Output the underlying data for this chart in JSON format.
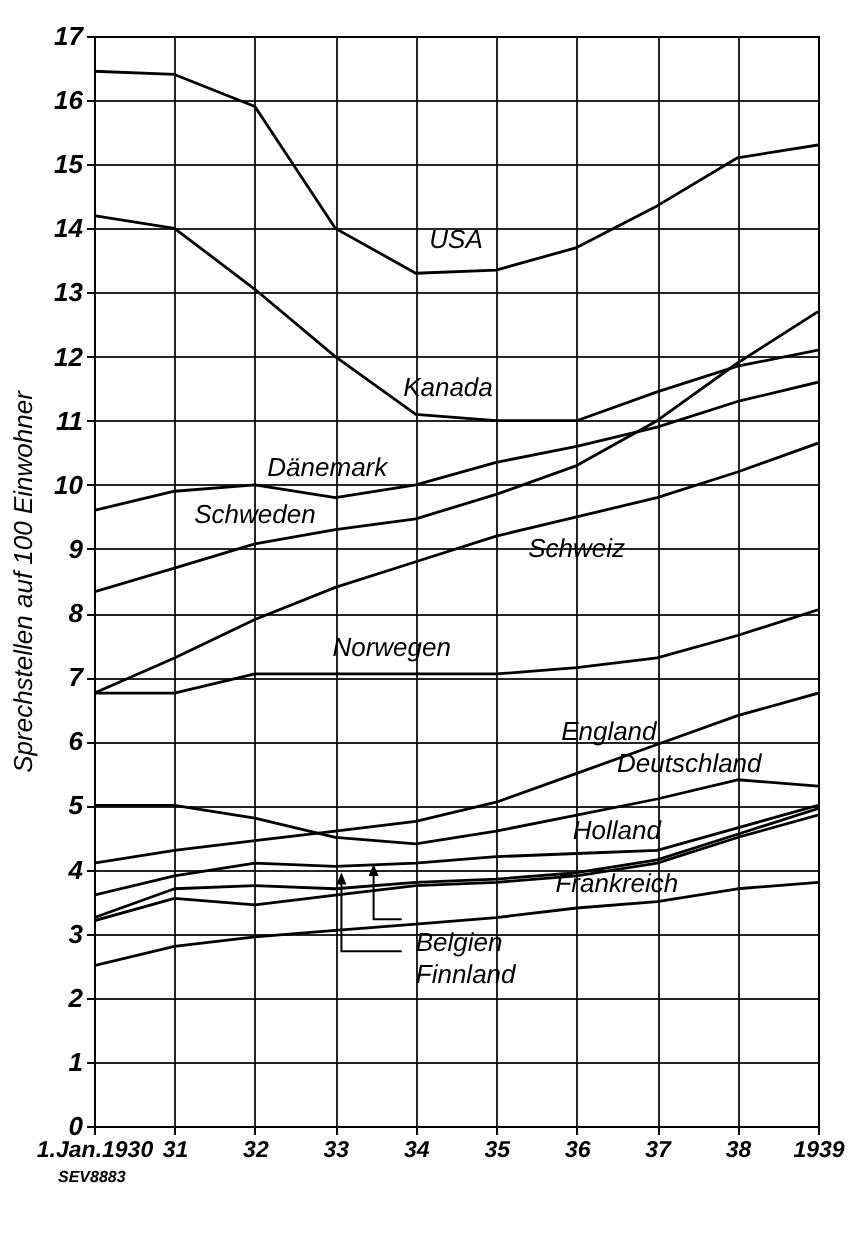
{
  "chart_data": {
    "type": "line",
    "ylabel": "Sprechstellen auf 100 Einwohner",
    "categories": [
      "1.Jan.1930",
      "31",
      "32",
      "33",
      "34",
      "35",
      "36",
      "37",
      "38",
      "1939"
    ],
    "series": [
      {
        "name": "USA",
        "color": "#000000",
        "values": [
          16.45,
          16.4,
          15.9,
          14.0,
          13.3,
          13.35,
          13.7,
          14.35,
          15.1,
          15.3
        ]
      },
      {
        "name": "Kanada",
        "color": "#000000",
        "values": [
          14.2,
          14.0,
          13.05,
          12.0,
          11.1,
          11.0,
          11.0,
          11.45,
          11.85,
          12.1
        ]
      },
      {
        "name": "Dänemark",
        "color": "#000000",
        "values": [
          9.6,
          9.9,
          10.0,
          9.8,
          10.0,
          10.35,
          10.6,
          10.9,
          11.3,
          11.6
        ]
      },
      {
        "name": "Schweden",
        "color": "#000000",
        "values": [
          8.33,
          8.7,
          9.08,
          9.3,
          9.47,
          9.85,
          10.3,
          11.0,
          11.9,
          12.7
        ]
      },
      {
        "name": "Schweiz",
        "color": "#000000",
        "values": [
          6.75,
          7.3,
          7.9,
          8.4,
          8.8,
          9.2,
          9.5,
          9.8,
          10.2,
          10.65
        ]
      },
      {
        "name": "Norwegen",
        "color": "#000000",
        "values": [
          6.75,
          6.75,
          7.05,
          7.05,
          7.05,
          7.05,
          7.15,
          7.3,
          7.65,
          8.05
        ]
      },
      {
        "name": "England",
        "color": "#000000",
        "values": [
          4.1,
          4.3,
          4.45,
          4.6,
          4.75,
          5.05,
          5.5,
          5.95,
          6.4,
          6.75
        ]
      },
      {
        "name": "Deutschland",
        "color": "#000000",
        "values": [
          5.0,
          5.0,
          4.8,
          4.5,
          4.4,
          4.6,
          4.85,
          5.1,
          5.4,
          5.3
        ]
      },
      {
        "name": "Holland",
        "color": "#000000",
        "values": [
          3.6,
          3.9,
          4.1,
          4.05,
          4.1,
          4.2,
          4.25,
          4.3,
          4.65,
          5.0
        ]
      },
      {
        "name": "Frankreich",
        "color": "#000000",
        "values": [
          2.5,
          2.8,
          2.95,
          3.05,
          3.15,
          3.25,
          3.4,
          3.5,
          3.7,
          3.8
        ]
      },
      {
        "name": "Belgien",
        "color": "#000000",
        "values": [
          3.25,
          3.7,
          3.75,
          3.7,
          3.8,
          3.85,
          3.95,
          4.15,
          4.55,
          4.95
        ]
      },
      {
        "name": "Finnland",
        "color": "#000000",
        "values": [
          3.2,
          3.55,
          3.45,
          3.6,
          3.75,
          3.8,
          3.9,
          4.1,
          4.5,
          4.85
        ]
      }
    ],
    "ylim": [
      0,
      17
    ],
    "yticks": [
      0,
      1,
      2,
      3,
      4,
      5,
      6,
      7,
      8,
      9,
      10,
      11,
      12,
      13,
      14,
      15,
      16,
      17
    ],
    "grid": true,
    "annotations": [
      "SEV8883"
    ]
  }
}
